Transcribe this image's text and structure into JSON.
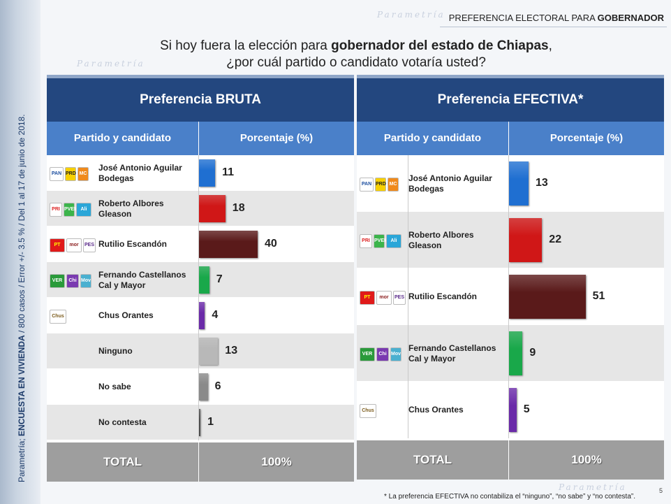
{
  "header": {
    "tag_prefix": "PREFERENCIA ELECTORAL  PARA ",
    "tag_bold": "GOBERNADOR"
  },
  "question": {
    "line1_prefix": "Si hoy fuera la elección para ",
    "line1_bold": "gobernador del estado de Chiapas",
    "line1_suffix": ",",
    "line2": "¿por cuál partido o candidato votaría usted?"
  },
  "sidebar": {
    "prefix": "Parametría; ",
    "bold": "ENCUESTA EN VIVIENDA",
    "suffix": " / 800 casos / Error +/- 3.5 % / Del 1 al 17 de junio de 2018."
  },
  "background_watermark": "Parametría",
  "colors": {
    "title_bg": "#23477f",
    "header_bg": "#4a80c9",
    "total_bg": "#9e9e9e"
  },
  "chart_data": [
    {
      "type": "bar",
      "title": "Preferencia BRUTA",
      "col_left": "Partido y candidato",
      "col_right": "Porcentaje (%)",
      "categories": [
        "José Antonio Aguilar Bodegas",
        "Roberto Albores Gleason",
        "Rutilio Escandón",
        "Fernando Castellanos Cal y Mayor",
        "Chus Orantes",
        "Ninguno",
        "No sabe",
        "No contesta"
      ],
      "cat_lines": [
        [
          "José Antonio Aguilar",
          "Bodegas"
        ],
        [
          "Roberto Albores",
          "Gleason"
        ],
        [
          "Rutilio Escandón"
        ],
        [
          "Fernando Castellanos",
          "Cal y Mayor"
        ],
        [
          "Chus Orantes"
        ],
        [
          "Ninguno"
        ],
        [
          "No sabe"
        ],
        [
          "No contesta"
        ]
      ],
      "values": [
        11,
        18,
        40,
        7,
        4,
        13,
        6,
        1
      ],
      "value_labels": [
        "11",
        "18",
        "40",
        "7",
        "4",
        "13",
        "6",
        "1"
      ],
      "bar_colors": [
        "#1f6fd1",
        "#d01717",
        "#5a1a1a",
        "#19a84a",
        "#6a2aa8",
        "#b8b8b8",
        "#8a8a8a",
        "#4a4a4a"
      ],
      "logos": [
        [
          "PAN",
          "PRD",
          "MC"
        ],
        [
          "PRI",
          "PVEM",
          "Alianza"
        ],
        [
          "PT",
          "morena",
          "PES"
        ],
        [
          "VERDE",
          "Chiapas",
          "Mover"
        ],
        [
          "Chus"
        ],
        [],
        [],
        []
      ],
      "total_label": "TOTAL",
      "total_value": "100%"
    },
    {
      "type": "bar",
      "title": "Preferencia EFECTIVA*",
      "col_left": "Partido y candidato",
      "col_right": "Porcentaje (%)",
      "categories": [
        "José Antonio Aguilar Bodegas",
        "Roberto Albores Gleason",
        "Rutilio Escandón",
        "Fernando Castellanos Cal y Mayor",
        "Chus Orantes"
      ],
      "cat_lines": [
        [
          "José Antonio Aguilar",
          "Bodegas"
        ],
        [
          "Roberto Albores",
          "Gleason"
        ],
        [
          "Rutilio Escandón"
        ],
        [
          "Fernando Castellanos",
          "Cal y Mayor"
        ],
        [
          "Chus Orantes"
        ]
      ],
      "values": [
        13,
        22,
        51,
        9,
        5
      ],
      "value_labels": [
        "13",
        "22",
        "51",
        "9",
        "5"
      ],
      "bar_colors": [
        "#1f6fd1",
        "#d01717",
        "#5a1a1a",
        "#19a84a",
        "#6a2aa8"
      ],
      "logos": [
        [
          "PAN",
          "PRD",
          "MC"
        ],
        [
          "PRI",
          "PVEM",
          "Alianza"
        ],
        [
          "PT",
          "morena",
          "PES"
        ],
        [
          "VERDE",
          "Chiapas",
          "Mover"
        ],
        [
          "Chus"
        ]
      ],
      "total_label": "TOTAL",
      "total_value": "100%"
    }
  ],
  "footnote": "* La preferencia EFECTIVA no contabiliza el “ninguno”, “no sabe” y “no contesta”.",
  "page_number": "5"
}
